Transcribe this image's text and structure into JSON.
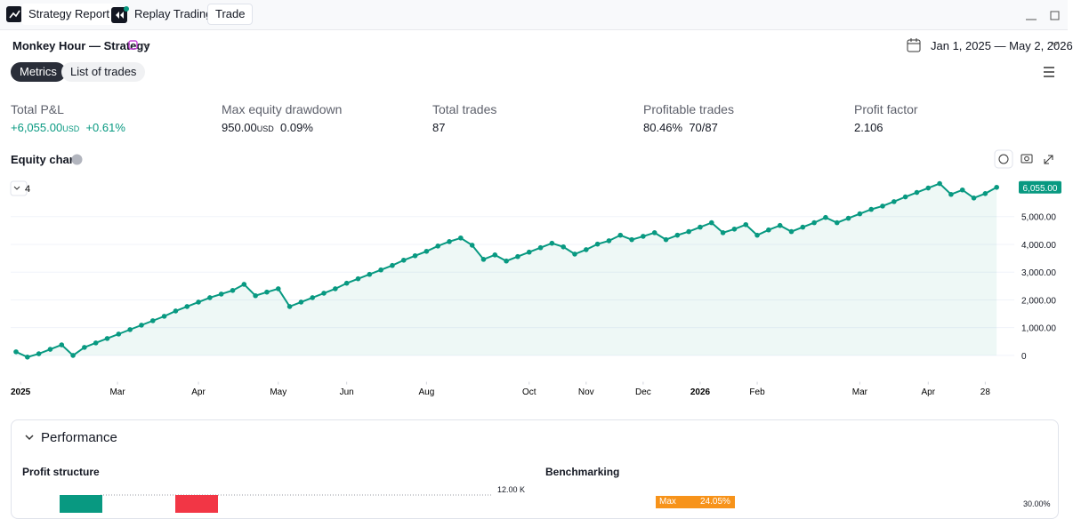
{
  "tabs": [
    "Strategy Report",
    "Replay Trading",
    "Trade"
  ],
  "header": {
    "strategy": "Monkey Hour — Strategy",
    "date_range": "Jan 1, 2025 — May 2, 2026"
  },
  "views": [
    "Metrics",
    "List of trades"
  ],
  "metrics": [
    {
      "label": "Total P&L",
      "value": "+6,055.00",
      "unit": "USD",
      "extra": "+0.61%"
    },
    {
      "label": "Max equity drawdown",
      "value": "950.00",
      "unit": "USD",
      "extra": "0.09%"
    },
    {
      "label": "Total trades",
      "value": "87"
    },
    {
      "label": "Profitable trades",
      "value": "80.46%",
      "extra": "70/87"
    },
    {
      "label": "Profit factor",
      "value": "2.106"
    }
  ],
  "chart_data": {
    "type": "line",
    "title": "Equity chart",
    "legend_count": "4",
    "series": [
      {
        "name": "Equity",
        "color": "#089981",
        "values": [
          130,
          -60,
          60,
          220,
          380,
          0,
          290,
          450,
          610,
          770,
          930,
          1090,
          1250,
          1410,
          1600,
          1760,
          1920,
          2080,
          2210,
          2340,
          2560,
          2150,
          2280,
          2400,
          1760,
          1920,
          2080,
          2240,
          2400,
          2600,
          2760,
          2920,
          3080,
          3240,
          3430,
          3590,
          3750,
          3940,
          4100,
          4230,
          3970,
          3460,
          3620,
          3400,
          3560,
          3720,
          3880,
          4040,
          3910,
          3650,
          3810,
          4010,
          4130,
          4330,
          4170,
          4290,
          4420,
          4170,
          4330,
          4460,
          4620,
          4780,
          4420,
          4550,
          4710,
          4330,
          4520,
          4680,
          4460,
          4620,
          4780,
          4970,
          4780,
          4940,
          5100,
          5260,
          5380,
          5540,
          5710,
          5870,
          6030,
          6190,
          5800,
          5960,
          5670,
          5830,
          6055
        ]
      }
    ],
    "last_value_label": "6,055.00",
    "xlim": [
      0,
      87
    ],
    "xticks": [
      {
        "value": 0.4,
        "label": "2025"
      },
      {
        "value": 8.9,
        "label": "Mar"
      },
      {
        "value": 16,
        "label": "Apr"
      },
      {
        "value": 23,
        "label": "May"
      },
      {
        "value": 29,
        "label": "Jun"
      },
      {
        "value": 36,
        "label": "Aug"
      },
      {
        "value": 45,
        "label": "Oct"
      },
      {
        "value": 50,
        "label": "Nov"
      },
      {
        "value": 55,
        "label": "Dec"
      },
      {
        "value": 60,
        "label": "2026"
      },
      {
        "value": 65,
        "label": "Feb"
      },
      {
        "value": 74,
        "label": "Mar"
      },
      {
        "value": 80,
        "label": "Apr"
      },
      {
        "value": 85,
        "label": "28"
      }
    ],
    "ylim": [
      -950,
      6400
    ],
    "yticks": [
      0,
      {
        "value": 1000,
        "label": "1,000.00"
      },
      {
        "value": 2000,
        "label": "2,000.00"
      },
      {
        "value": 3000,
        "label": "3,000.00"
      },
      {
        "value": 4000,
        "label": "4,000.00"
      },
      {
        "value": 5000,
        "label": "5,000.00"
      }
    ],
    "grid": true
  },
  "performance": {
    "title": "Performance",
    "profit_structure": "Profit structure",
    "profit_tick": "12.00 K",
    "benchmarking": "Benchmarking",
    "max_label": "Max",
    "max_value": "24.05%",
    "bench_tick": "30.00%"
  }
}
